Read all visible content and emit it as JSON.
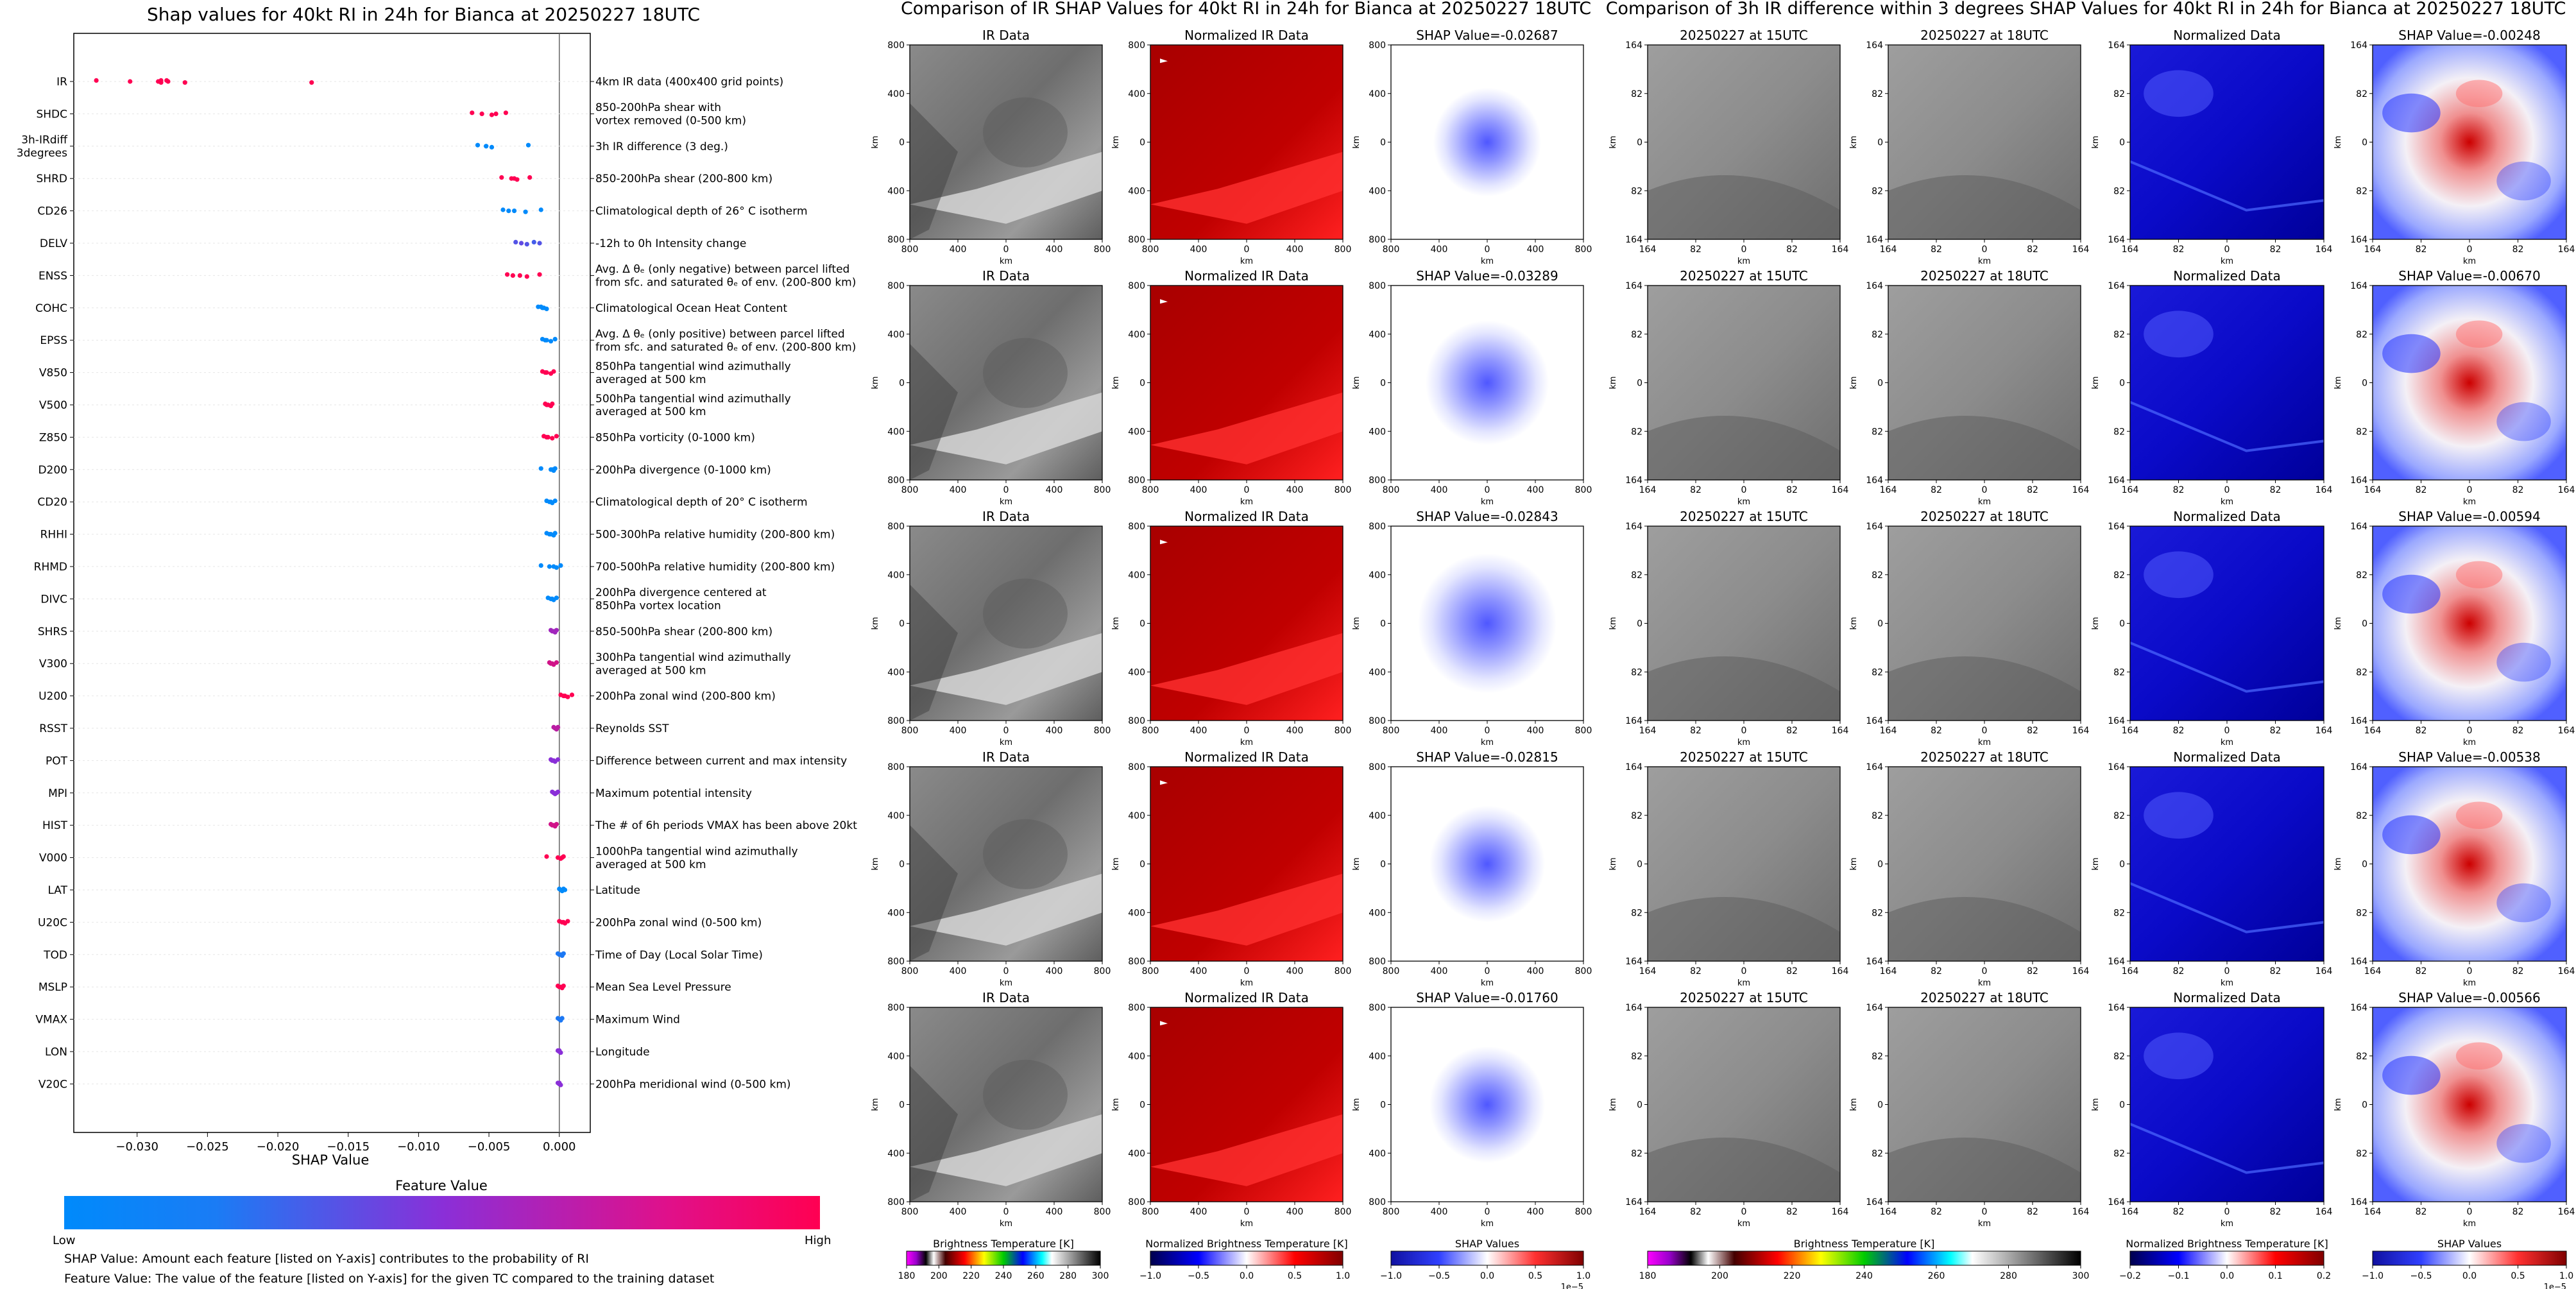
{
  "colors": {
    "feature_low": "#008afb",
    "feature_high": "#ff0052",
    "shap_negative": "#2233dd",
    "shap_positive": "#cc1111",
    "ir_gray_light": "#d2d2d2",
    "ir_gray_dark": "#4a4a4a",
    "norm_red": "#b80000"
  },
  "shap_summary": {
    "title": "Shap values for 40kt RI in 24h for Bianca at 20250227 18UTC",
    "xlabel": "SHAP Value",
    "feature_value_label": "Feature Value",
    "low_label": "Low",
    "high_label": "High",
    "footnote_1": "SHAP Value: Amount each feature [listed on Y-axis] contributes to the probability of RI",
    "footnote_2": "Feature Value: The value of the feature [listed on Y-axis] for the given TC compared to the training dataset"
  },
  "chart_data": [
    {
      "type": "scatter",
      "name": "shap-beeswarm",
      "title": "Shap values for 40kt RI in 24h for Bianca at 20250227 18UTC",
      "xlabel": "SHAP Value",
      "xlim": [
        -0.0345,
        0.0022
      ],
      "xticks": [
        "−0.030",
        "−0.025",
        "−0.020",
        "−0.015",
        "−0.010",
        "−0.005",
        "0.000"
      ],
      "xtick_values": [
        -0.03,
        -0.025,
        -0.02,
        -0.015,
        -0.01,
        -0.005,
        0.0
      ],
      "colorbar": {
        "label": "Feature Value",
        "low": "Low",
        "high": "High",
        "cmap": "blue-magenta-red"
      },
      "features": [
        {
          "code": "IR",
          "desc": "4km IR data (400x400 grid points)",
          "shap": [
            -0.0283,
            -0.0285,
            -0.0266,
            -0.0279,
            -0.0305,
            -0.0283,
            -0.0329,
            -0.0278,
            -0.0176
          ],
          "fv": [
            1.0,
            1.0,
            1.0,
            1.0,
            1.0,
            1.0,
            1.0,
            1.0,
            1.0
          ]
        },
        {
          "code": "SHDC",
          "desc": "850-200hPa shear with\nvortex removed (0-500 km)",
          "shap": [
            -0.0062,
            -0.0055,
            -0.0048,
            -0.0038,
            -0.0045
          ],
          "fv": [
            1.0,
            1.0,
            1.0,
            1.0,
            1.0
          ]
        },
        {
          "code": "3h-IRdiff\n3degrees",
          "desc": "3h IR difference (3 deg.)",
          "shap": [
            -0.0058,
            -0.0052,
            -0.0048,
            -0.0022,
            -0.0052
          ],
          "fv": [
            0.0,
            0.0,
            0.0,
            0.0,
            0.0
          ]
        },
        {
          "code": "SHRD",
          "desc": "850-200hPa shear (200-800 km)",
          "shap": [
            -0.0041,
            -0.0034,
            -0.003,
            -0.0021,
            -0.0032
          ],
          "fv": [
            1.0,
            1.0,
            1.0,
            1.0,
            1.0
          ]
        },
        {
          "code": "CD26",
          "desc": "Climatological depth of 26° C isotherm",
          "shap": [
            -0.004,
            -0.0032,
            -0.0024,
            -0.0013,
            -0.0036
          ],
          "fv": [
            0.0,
            0.0,
            0.0,
            0.0,
            0.0
          ]
        },
        {
          "code": "DELV",
          "desc": "-12h to 0h Intensity change",
          "shap": [
            -0.0031,
            -0.0027,
            -0.0023,
            -0.0018,
            -0.0014
          ],
          "fv": [
            0.3,
            0.35,
            0.3,
            0.25,
            0.3
          ]
        },
        {
          "code": "ENSS",
          "desc": "Avg. Δ θₑ (only negative) between parcel lifted\nfrom sfc. and saturated θₑ of env. (200-800 km)",
          "shap": [
            -0.0037,
            -0.0028,
            -0.0023,
            -0.0014,
            -0.0033
          ],
          "fv": [
            1.0,
            1.0,
            1.0,
            1.0,
            1.0
          ]
        },
        {
          "code": "COHC",
          "desc": "Climatological Ocean Heat Content",
          "shap": [
            -0.0015,
            -0.0012,
            -0.0009,
            -0.0013,
            -0.0011
          ],
          "fv": [
            0.0,
            0.0,
            0.0,
            0.0,
            0.0
          ]
        },
        {
          "code": "EPSS",
          "desc": "Avg. Δ θₑ (only positive) between parcel lifted\nfrom sfc. and saturated θₑ of env. (200-800 km)",
          "shap": [
            -0.0012,
            -0.0009,
            -0.0006,
            -0.0003,
            -0.001
          ],
          "fv": [
            0.0,
            0.0,
            0.0,
            0.0,
            0.0
          ]
        },
        {
          "code": "V850",
          "desc": "850hPa tangential wind azimuthally\naveraged at 500 km",
          "shap": [
            -0.0012,
            -0.0009,
            -0.0006,
            -0.0004,
            -0.001
          ],
          "fv": [
            1.0,
            1.0,
            1.0,
            1.0,
            1.0
          ]
        },
        {
          "code": "V500",
          "desc": "500hPa tangential wind azimuthally\naveraged at 500 km",
          "shap": [
            -0.001,
            -0.0008,
            -0.0006,
            -0.0005,
            -0.0009
          ],
          "fv": [
            1.0,
            1.0,
            1.0,
            1.0,
            1.0
          ]
        },
        {
          "code": "Z850",
          "desc": "850hPa vorticity (0-1000 km)",
          "shap": [
            -0.0011,
            -0.0009,
            -0.0005,
            -0.0002,
            -0.0008
          ],
          "fv": [
            1.0,
            1.0,
            1.0,
            1.0,
            1.0
          ]
        },
        {
          "code": "D200",
          "desc": "200hPa divergence (0-1000 km)",
          "shap": [
            -0.0013,
            -0.0006,
            -0.0004,
            -0.0003,
            -0.0005
          ],
          "fv": [
            0.0,
            0.0,
            0.0,
            0.0,
            0.0
          ]
        },
        {
          "code": "CD20",
          "desc": "Climatological depth of 20° C isotherm",
          "shap": [
            -0.0009,
            -0.0007,
            -0.0005,
            -0.0003,
            -0.0006
          ],
          "fv": [
            0.0,
            0.0,
            0.0,
            0.0,
            0.0
          ]
        },
        {
          "code": "RHHI",
          "desc": "500-300hPa relative humidity (200-800 km)",
          "shap": [
            -0.0009,
            -0.0006,
            -0.0004,
            -0.0003,
            -0.0007
          ],
          "fv": [
            0.0,
            0.0,
            0.0,
            0.0,
            0.0
          ]
        },
        {
          "code": "RHMD",
          "desc": "700-500hPa relative humidity (200-800 km)",
          "shap": [
            -0.0013,
            -0.0007,
            -0.0002,
            0.0001,
            -0.0004
          ],
          "fv": [
            0.0,
            0.0,
            0.0,
            0.0,
            0.0
          ]
        },
        {
          "code": "DIVC",
          "desc": "200hPa divergence centered at\n850hPa vortex location",
          "shap": [
            -0.0008,
            -0.0006,
            -0.0004,
            -0.0002,
            -0.0005
          ],
          "fv": [
            0.0,
            0.0,
            0.0,
            0.0,
            0.0
          ]
        },
        {
          "code": "SHRS",
          "desc": "850-500hPa shear (200-800 km)",
          "shap": [
            -0.0006,
            -0.0005,
            -0.0003,
            -0.0002,
            -0.0004
          ],
          "fv": [
            0.6,
            0.6,
            0.6,
            0.6,
            0.6
          ]
        },
        {
          "code": "V300",
          "desc": "300hPa tangential wind azimuthally\naveraged at 500 km",
          "shap": [
            -0.0007,
            -0.0005,
            -0.0004,
            -0.0002,
            -0.0006
          ],
          "fv": [
            0.8,
            0.8,
            0.8,
            0.8,
            0.8
          ]
        },
        {
          "code": "U200",
          "desc": "200hPa zonal wind (200-800 km)",
          "shap": [
            0.0001,
            0.0003,
            0.0006,
            0.0009,
            0.0004
          ],
          "fv": [
            1.0,
            1.0,
            1.0,
            1.0,
            1.0
          ]
        },
        {
          "code": "RSST",
          "desc": "Reynolds SST",
          "shap": [
            -0.0004,
            -0.0003,
            -0.0002,
            -0.0001,
            -0.0003
          ],
          "fv": [
            0.7,
            0.7,
            0.7,
            0.7,
            0.7
          ]
        },
        {
          "code": "POT",
          "desc": "Difference between current and max intensity",
          "shap": [
            -0.0006,
            -0.0004,
            -0.0003,
            -0.0001,
            -0.0005
          ],
          "fv": [
            0.5,
            0.5,
            0.5,
            0.5,
            0.5
          ]
        },
        {
          "code": "MPI",
          "desc": "Maximum potential intensity",
          "shap": [
            -0.0005,
            -0.0004,
            -0.0003,
            -0.0001,
            -0.0002
          ],
          "fv": [
            0.5,
            0.5,
            0.5,
            0.5,
            0.5
          ]
        },
        {
          "code": "HIST",
          "desc": "The # of 6h periods VMAX has been above 20kt",
          "shap": [
            -0.0006,
            -0.0004,
            -0.0003,
            -0.0002,
            -0.0005
          ],
          "fv": [
            0.8,
            0.8,
            0.8,
            0.8,
            0.8
          ]
        },
        {
          "code": "V000",
          "desc": "1000hPa tangential wind azimuthally\naveraged at 500 km",
          "shap": [
            -0.0009,
            -0.0001,
            0.0001,
            0.0003,
            0.0002
          ],
          "fv": [
            1.0,
            1.0,
            1.0,
            1.0,
            1.0
          ]
        },
        {
          "code": "LAT",
          "desc": "Latitude",
          "shap": [
            0.0,
            0.0001,
            0.0002,
            0.0003,
            0.0004
          ],
          "fv": [
            0.0,
            0.0,
            0.0,
            0.0,
            0.0
          ]
        },
        {
          "code": "U20C",
          "desc": "200hPa zonal wind (0-500 km)",
          "shap": [
            0.0,
            0.0002,
            0.0004,
            0.0006,
            0.0003
          ],
          "fv": [
            1.0,
            1.0,
            1.0,
            1.0,
            1.0
          ]
        },
        {
          "code": "TOD",
          "desc": "Time of Day (Local Solar Time)",
          "shap": [
            -0.0001,
            0.0001,
            0.0002,
            0.0003,
            0.0
          ],
          "fv": [
            0.1,
            0.1,
            0.1,
            0.1,
            0.1
          ]
        },
        {
          "code": "MSLP",
          "desc": "Mean Sea Level Pressure",
          "shap": [
            -0.0001,
            0.0001,
            0.0002,
            0.0003,
            0.0
          ],
          "fv": [
            1.0,
            1.0,
            1.0,
            1.0,
            1.0
          ]
        },
        {
          "code": "VMAX",
          "desc": "Maximum Wind",
          "shap": [
            -0.0001,
            0.0,
            0.0001,
            0.0002,
            0.0001
          ],
          "fv": [
            0.1,
            0.1,
            0.1,
            0.1,
            0.1
          ]
        },
        {
          "code": "LON",
          "desc": "Longitude",
          "shap": [
            -0.0001,
            0.0,
            0.0001,
            0.0,
            0.0
          ],
          "fv": [
            0.5,
            0.5,
            0.5,
            0.5,
            0.5
          ]
        },
        {
          "code": "V20C",
          "desc": "200hPa meridional wind (0-500 km)",
          "shap": [
            -0.0001,
            0.0,
            0.0001,
            0.0,
            0.0
          ],
          "fv": [
            0.5,
            0.5,
            0.5,
            0.5,
            0.5
          ]
        }
      ]
    },
    {
      "type": "heatmap",
      "name": "ir-shap-grid",
      "title": "Comparison of IR SHAP Values for 40kt RI in 24h for Bianca at 20250227 18UTC",
      "xlabel": "km",
      "ylabel": "km",
      "ticks": [
        "800",
        "400",
        "0",
        "400",
        "800"
      ],
      "columns": [
        "IR Data",
        "Normalized IR Data"
      ],
      "shap_titles": [
        "SHAP Value=-0.02687",
        "SHAP Value=-0.03289",
        "SHAP Value=-0.02843",
        "SHAP Value=-0.02815",
        "SHAP Value=-0.01760"
      ],
      "colorbars": [
        {
          "label": "Brightness Temperature [K]",
          "ticks": [
            "180",
            "200",
            "220",
            "240",
            "260",
            "280",
            "300"
          ]
        },
        {
          "label": "Normalized Brightness Temperature [K]",
          "ticks": [
            "−1.0",
            "−0.5",
            "0.0",
            "0.5",
            "1.0"
          ]
        },
        {
          "label": "SHAP Values",
          "ticks": [
            "−1.0",
            "−0.5",
            "0.0",
            "0.5",
            "1.0"
          ],
          "offset": "1e−5"
        }
      ]
    },
    {
      "type": "heatmap",
      "name": "irdiff-shap-grid",
      "title": "Comparison of 3h IR difference within 3 degrees SHAP Values for 40kt RI in 24h for Bianca at 20250227 18UTC",
      "xlabel": "km",
      "ylabel": "km",
      "ticks": [
        "164",
        "82",
        "0",
        "82",
        "164"
      ],
      "columns": [
        "20250227 at 15UTC",
        "20250227 at 18UTC",
        "Normalized Data"
      ],
      "shap_titles": [
        "SHAP Value=-0.00248",
        "SHAP Value=-0.00670",
        "SHAP Value=-0.00594",
        "SHAP Value=-0.00538",
        "SHAP Value=-0.00566"
      ],
      "colorbars": [
        {
          "label": "Brightness Temperature [K]",
          "ticks": [
            "180",
            "200",
            "220",
            "240",
            "260",
            "280",
            "300"
          ]
        },
        {
          "label": "Normalized Brightness Temperature [K]",
          "ticks": [
            "−0.2",
            "−0.1",
            "0.0",
            "0.1",
            "0.2"
          ]
        },
        {
          "label": "SHAP Values",
          "ticks": [
            "−1.0",
            "−0.5",
            "0.0",
            "0.5",
            "1.0"
          ],
          "offset": "1e−5"
        }
      ]
    }
  ]
}
